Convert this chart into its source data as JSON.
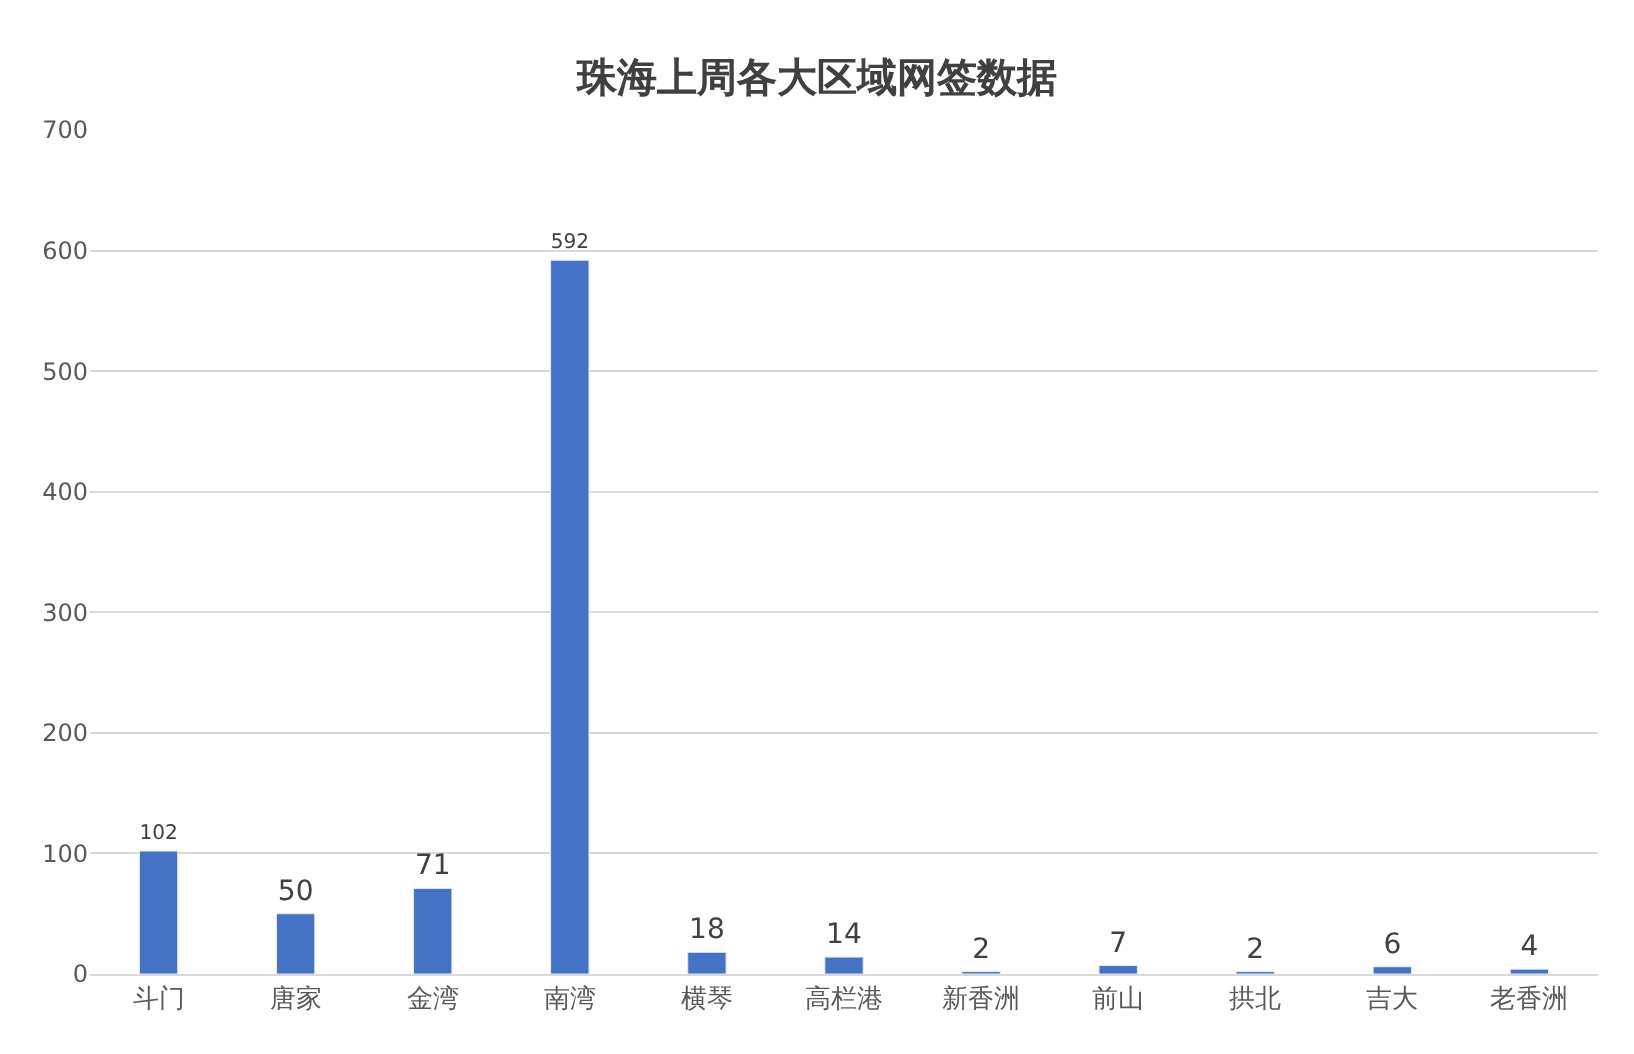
{
  "chart_data": {
    "type": "bar",
    "title": "珠海上周各大区域网签数据",
    "categories": [
      "斗门",
      "唐家",
      "金湾",
      "南湾",
      "横琴",
      "高栏港",
      "新香洲",
      "前山",
      "拱北",
      "吉大",
      "老香洲"
    ],
    "values": [
      102,
      50,
      71,
      592,
      18,
      14,
      2,
      7,
      2,
      6,
      4
    ],
    "color": "#4472c4",
    "ylim": [
      0,
      700
    ],
    "yticks": [
      0,
      100,
      200,
      300,
      400,
      500,
      600,
      700
    ],
    "grid": "y",
    "data_labels": true,
    "legend": false
  }
}
